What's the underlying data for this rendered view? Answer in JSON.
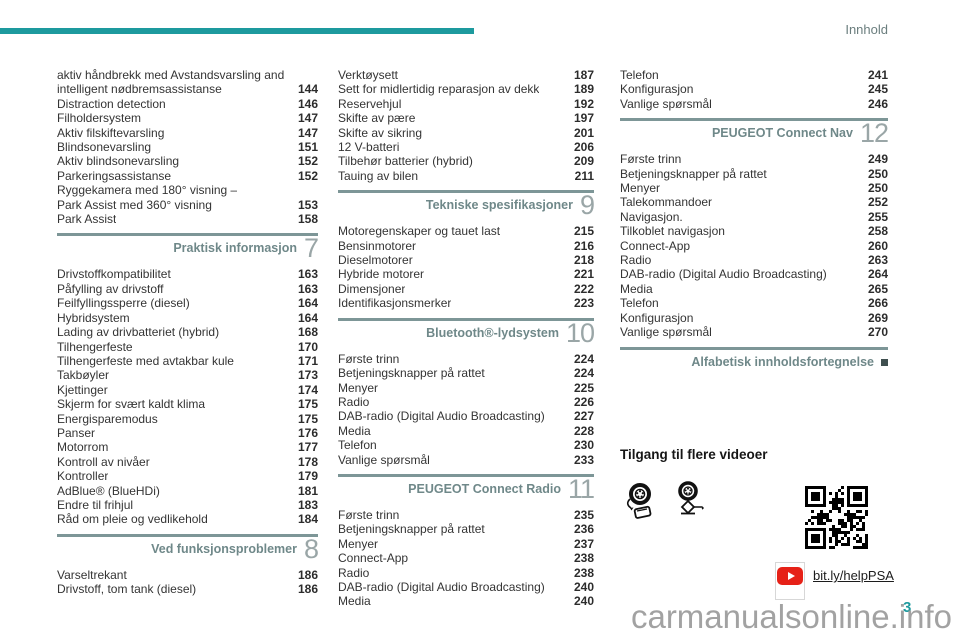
{
  "page": {
    "header_label": "Innhold",
    "page_number": "3",
    "watermark": "carmanualsonline.info"
  },
  "colors": {
    "accent_teal": "#1d9a9e",
    "section_header_text": "#6f8889",
    "section_number": "#9aa6a7",
    "separator_line": "#7d9697",
    "body_text": "#343434",
    "watermark_gray": "#9b9b9b",
    "youtube_red": "#e62117"
  },
  "columns": [
    {
      "blocks": [
        {
          "type": "toc",
          "lines": [
            {
              "text": "aktiv håndbrekk med Avstandsvarsling and",
              "page": ""
            },
            {
              "text": "intelligent nødbremsassistanse",
              "page": "144"
            },
            {
              "text": "Distraction detection",
              "page": "146"
            },
            {
              "text": "Filholdersystem",
              "page": "147"
            },
            {
              "text": "Aktiv filskiftevarsling",
              "page": "147"
            },
            {
              "text": "Blindsonevarsling",
              "page": "151"
            },
            {
              "text": "Aktiv blindsonevarsling",
              "page": "152"
            },
            {
              "text": "Parkeringsassistanse",
              "page": "152"
            },
            {
              "text": "Ryggekamera med 180° visning –",
              "page": ""
            },
            {
              "text": "Park Assist med 360° visning",
              "page": "153"
            },
            {
              "text": "Park Assist",
              "page": "158"
            }
          ]
        },
        {
          "type": "section",
          "title": "Praktisk informasjon",
          "number": "7",
          "end_marker": false
        },
        {
          "type": "toc",
          "lines": [
            {
              "text": "Drivstoffkompatibilitet",
              "page": "163"
            },
            {
              "text": "Påfylling av drivstoff",
              "page": "163"
            },
            {
              "text": "Feilfyllingssperre (diesel)",
              "page": "164"
            },
            {
              "text": "Hybridsystem",
              "page": "164"
            },
            {
              "text": "Lading av drivbatteriet (hybrid)",
              "page": "168"
            },
            {
              "text": "Tilhengerfeste",
              "page": "170"
            },
            {
              "text": "Tilhengerfeste med avtakbar kule",
              "page": "171"
            },
            {
              "text": "Takbøyler",
              "page": "173"
            },
            {
              "text": "Kjettinger",
              "page": "174"
            },
            {
              "text": "Skjerm for svært kaldt klima",
              "page": "175"
            },
            {
              "text": "Energisparemodus",
              "page": "175"
            },
            {
              "text": "Panser",
              "page": "176"
            },
            {
              "text": "Motorrom",
              "page": "177"
            },
            {
              "text": "Kontroll av nivåer",
              "page": "178"
            },
            {
              "text": "Kontroller",
              "page": "179"
            },
            {
              "text": "AdBlue® (BlueHDi)",
              "page": "181"
            },
            {
              "text": "Endre til frihjul",
              "page": "183"
            },
            {
              "text": "Råd om pleie og vedlikehold",
              "page": "184"
            }
          ]
        },
        {
          "type": "section",
          "title": "Ved funksjonsproblemer",
          "number": "8",
          "end_marker": false
        },
        {
          "type": "toc",
          "lines": [
            {
              "text": "Varseltrekant",
              "page": "186"
            },
            {
              "text": "Drivstoff, tom tank (diesel)",
              "page": "186"
            }
          ]
        }
      ]
    },
    {
      "blocks": [
        {
          "type": "toc",
          "lines": [
            {
              "text": "Verktøysett",
              "page": "187"
            },
            {
              "text": "Sett for midlertidig reparasjon av dekk",
              "page": "189"
            },
            {
              "text": "Reservehjul",
              "page": "192"
            },
            {
              "text": "Skifte av pære",
              "page": "197"
            },
            {
              "text": "Skifte av sikring",
              "page": "201"
            },
            {
              "text": "12 V-batteri",
              "page": "206"
            },
            {
              "text": "Tilbehør batterier (hybrid)",
              "page": "209"
            },
            {
              "text": "Tauing av bilen",
              "page": "211"
            }
          ]
        },
        {
          "type": "section",
          "title": "Tekniske spesifikasjoner",
          "number": "9",
          "end_marker": false
        },
        {
          "type": "toc",
          "lines": [
            {
              "text": "Motoregenskaper og tauet last",
              "page": "215"
            },
            {
              "text": "Bensinmotorer",
              "page": "216"
            },
            {
              "text": "Dieselmotorer",
              "page": "218"
            },
            {
              "text": "Hybride motorer",
              "page": "221"
            },
            {
              "text": "Dimensjoner",
              "page": "222"
            },
            {
              "text": "Identifikasjonsmerker",
              "page": "223"
            }
          ]
        },
        {
          "type": "section",
          "title": "Bluetooth®-lydsystem",
          "number": "10",
          "end_marker": false
        },
        {
          "type": "toc",
          "lines": [
            {
              "text": "Første trinn",
              "page": "224"
            },
            {
              "text": "Betjeningsknapper på rattet",
              "page": "224"
            },
            {
              "text": "Menyer",
              "page": "225"
            },
            {
              "text": "Radio",
              "page": "226"
            },
            {
              "text": "DAB-radio (Digital Audio Broadcasting)",
              "page": "227"
            },
            {
              "text": "Media",
              "page": "228"
            },
            {
              "text": "Telefon",
              "page": "230"
            },
            {
              "text": "Vanlige spørsmål",
              "page": "233"
            }
          ]
        },
        {
          "type": "section",
          "title": "PEUGEOT Connect Radio",
          "number": "11",
          "end_marker": false
        },
        {
          "type": "toc",
          "lines": [
            {
              "text": "Første trinn",
              "page": "235"
            },
            {
              "text": "Betjeningsknapper på rattet",
              "page": "236"
            },
            {
              "text": "Menyer",
              "page": "237"
            },
            {
              "text": "Connect-App",
              "page": "238"
            },
            {
              "text": "Radio",
              "page": "238"
            },
            {
              "text": "DAB-radio (Digital Audio Broadcasting)",
              "page": "240"
            },
            {
              "text": "Media",
              "page": "240"
            }
          ]
        }
      ]
    },
    {
      "blocks": [
        {
          "type": "toc",
          "lines": [
            {
              "text": "Telefon",
              "page": "241"
            },
            {
              "text": "Konfigurasjon",
              "page": "245"
            },
            {
              "text": "Vanlige spørsmål",
              "page": "246"
            }
          ]
        },
        {
          "type": "section",
          "title": "PEUGEOT Connect Nav",
          "number": "12",
          "end_marker": false
        },
        {
          "type": "toc",
          "lines": [
            {
              "text": "Første trinn",
              "page": "249"
            },
            {
              "text": "Betjeningsknapper på rattet",
              "page": "250"
            },
            {
              "text": "Menyer",
              "page": "250"
            },
            {
              "text": "Talekommandoer",
              "page": "252"
            },
            {
              "text": "Navigasjon.",
              "page": "255"
            },
            {
              "text": "Tilkoblet navigasjon",
              "page": "258"
            },
            {
              "text": "Connect-App",
              "page": "260"
            },
            {
              "text": "Radio",
              "page": "263"
            },
            {
              "text": "DAB-radio (Digital Audio Broadcasting)",
              "page": "264"
            },
            {
              "text": "Media",
              "page": "265"
            },
            {
              "text": "Telefon",
              "page": "266"
            },
            {
              "text": "Konfigurasjon",
              "page": "269"
            },
            {
              "text": "Vanlige spørsmål",
              "page": "270"
            }
          ]
        },
        {
          "type": "section",
          "title": "Alfabetisk innholdsfortegnelse",
          "number": "",
          "end_marker": true
        }
      ]
    }
  ],
  "videos": {
    "title": "Tilgang til flere videoer",
    "link": "bit.ly/helpPSA",
    "icons": [
      "tire-repair-kit-icon",
      "car-jack-icon",
      "qr-code",
      "youtube-play-icon"
    ]
  }
}
